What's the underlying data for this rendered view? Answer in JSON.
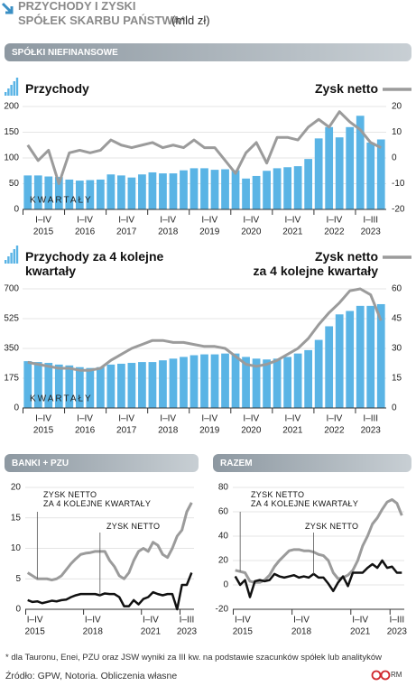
{
  "header": {
    "title_line1": "PRZYCHODY I ZYSKI",
    "title_line2": "SPÓŁEK SKARBU PAŃSTWA*",
    "unit": "(mld zł)"
  },
  "chart_data": [
    {
      "type": "bar_line",
      "section": "SPÓŁKI NIEFINANSOWE",
      "annotation": "KWARTAŁY",
      "grid": true,
      "groups": [
        {
          "label": "I–IV",
          "year": "2015"
        },
        {
          "label": "I–IV",
          "year": "2016"
        },
        {
          "label": "I–IV",
          "year": "2017"
        },
        {
          "label": "I–IV",
          "year": "2018"
        },
        {
          "label": "I–IV",
          "year": "2019"
        },
        {
          "label": "I–IV",
          "year": "2020"
        },
        {
          "label": "I–IV",
          "year": "2021"
        },
        {
          "label": "I–IV",
          "year": "2022"
        },
        {
          "label": "I–III",
          "year": "2023"
        }
      ],
      "series": [
        {
          "name": "Przychody",
          "color": "#5ab4e5",
          "values": [
            66,
            66,
            64,
            63,
            58,
            56,
            57,
            58,
            68,
            66,
            62,
            68,
            72,
            70,
            70,
            76,
            80,
            80,
            77,
            78,
            76,
            60,
            65,
            75,
            80,
            82,
            84,
            98,
            138,
            160,
            140,
            160,
            182,
            130,
            136
          ]
        },
        {
          "name": "Zysk netto",
          "color": "#9b9b9b",
          "axis": "y2",
          "values": [
            5,
            -1,
            3,
            -10,
            2,
            3,
            2,
            3,
            7,
            5,
            4,
            5,
            6,
            4,
            5,
            4,
            7,
            4,
            4,
            -1,
            -6,
            2,
            6,
            -2,
            8,
            8,
            7,
            12,
            15,
            12,
            18,
            14,
            11,
            6,
            4
          ]
        }
      ],
      "ylim": [
        0,
        200
      ],
      "yticks": [
        0,
        50,
        100,
        150,
        200
      ],
      "y2lim": [
        -20,
        20
      ],
      "y2ticks": [
        -20,
        -10,
        0,
        10,
        20
      ]
    },
    {
      "type": "bar_line",
      "annotation": "KWARTAŁY",
      "grid": true,
      "groups": [
        {
          "label": "I–IV",
          "year": "2015"
        },
        {
          "label": "I–IV",
          "year": "2016"
        },
        {
          "label": "I–IV",
          "year": "2017"
        },
        {
          "label": "I–IV",
          "year": "2018"
        },
        {
          "label": "I–IV",
          "year": "2019"
        },
        {
          "label": "I–IV",
          "year": "2020"
        },
        {
          "label": "I–IV",
          "year": "2021"
        },
        {
          "label": "I–IV",
          "year": "2022"
        },
        {
          "label": "I–III",
          "year": "2023"
        }
      ],
      "series": [
        {
          "name": "Przychody za 4 kolejne\nkwartały",
          "color": "#5ab4e5",
          "values": [
            275,
            270,
            265,
            255,
            250,
            240,
            235,
            240,
            255,
            260,
            265,
            270,
            270,
            280,
            290,
            300,
            310,
            315,
            315,
            320,
            320,
            300,
            290,
            285,
            290,
            300,
            320,
            340,
            400,
            480,
            550,
            570,
            600,
            600,
            610
          ]
        },
        {
          "name": "Zysk netto\nza 4 kolejne kwartały",
          "color": "#9b9b9b",
          "axis": "y2",
          "values": [
            23,
            22,
            21,
            20,
            20,
            19,
            19,
            20,
            24,
            27,
            30,
            32,
            34,
            34,
            33,
            33,
            32,
            31,
            31,
            30,
            26,
            22,
            21,
            22,
            24,
            27,
            30,
            35,
            42,
            48,
            53,
            59,
            60,
            57,
            44
          ]
        }
      ],
      "ylim": [
        0,
        700
      ],
      "yticks": [
        0,
        175,
        350,
        525,
        700
      ],
      "y2lim": [
        0,
        60
      ],
      "y2ticks": [
        0,
        15,
        30,
        45,
        60
      ]
    },
    {
      "type": "line",
      "section": "BANKI + PZU",
      "grid": true,
      "groups": [
        {
          "label": "I–IV",
          "year": "2015"
        },
        null,
        null,
        {
          "label": "I–IV",
          "year": "2018"
        },
        null,
        null,
        {
          "label": "I–IV",
          "year": "2021"
        },
        null,
        {
          "label": "I–III",
          "year": "2023"
        }
      ],
      "series": [
        {
          "name": "ZYSK NETTO\nZA 4 KOLEJNE KWARTAŁY",
          "color": "#9b9b9b",
          "values": [
            6,
            5.5,
            5,
            5,
            5,
            4.8,
            5,
            5.5,
            6.5,
            7.5,
            8.3,
            9,
            9.2,
            9.3,
            9.5,
            9.5,
            9.5,
            8,
            7,
            5.5,
            5,
            6,
            8,
            9.5,
            10,
            9.5,
            11,
            10.5,
            9,
            8.5,
            10,
            12,
            13,
            16,
            17.5
          ]
        },
        {
          "name": "ZYSK NETTO",
          "color": "#111111",
          "values": [
            1.5,
            1.2,
            1.3,
            1,
            1.2,
            1.4,
            1.3,
            1.5,
            1.6,
            2,
            2.3,
            2.5,
            2.5,
            2.5,
            2.5,
            2.3,
            2.6,
            2.5,
            2.5,
            2,
            0.5,
            0.5,
            1.5,
            0.8,
            1.7,
            2,
            2.8,
            2.5,
            2.3,
            2.5,
            2.5,
            0,
            4,
            4,
            6
          ]
        }
      ],
      "ylim": [
        0,
        20
      ],
      "yticks": [
        0,
        5,
        10,
        15,
        20
      ]
    },
    {
      "type": "line",
      "section": "RAZEM",
      "grid": true,
      "groups": [
        {
          "label": "I–IV",
          "year": "2015"
        },
        null,
        null,
        {
          "label": "I–IV",
          "year": "2018"
        },
        null,
        null,
        {
          "label": "I–IV",
          "year": "2021"
        },
        null,
        {
          "label": "I–III",
          "year": "2023"
        }
      ],
      "series": [
        {
          "name": "ZYSK NETTO\nZA 4 KOLEJNE KWARTAŁY",
          "color": "#9b9b9b",
          "values": [
            12,
            11,
            10,
            3,
            2,
            2,
            4,
            8,
            15,
            20,
            24,
            28,
            29,
            29,
            28,
            28,
            27,
            25,
            24,
            20,
            10,
            5,
            6,
            8,
            12,
            20,
            32,
            40,
            50,
            55,
            62,
            68,
            70,
            67,
            57
          ]
        },
        {
          "name": "ZYSK NETTO",
          "color": "#111111",
          "values": [
            7,
            0,
            4,
            -10,
            3,
            4,
            3,
            4,
            9,
            7,
            6,
            7,
            8,
            6,
            7,
            6,
            9,
            6,
            6,
            1,
            -5,
            2,
            7,
            -1,
            10,
            10,
            10,
            14,
            17,
            14,
            20,
            14,
            15,
            10,
            10
          ]
        }
      ],
      "ylim": [
        -20,
        80
      ],
      "yticks": [
        -20,
        0,
        20,
        40,
        60,
        80
      ]
    }
  ],
  "footnote": "* dla Tauronu, Enei, PZU oraz JSW wyniki za III kw. na podstawie szacunków spółek lub analityków",
  "source": "Źródło: GPW, Notoria. Obliczenia własne",
  "logo": "RM"
}
